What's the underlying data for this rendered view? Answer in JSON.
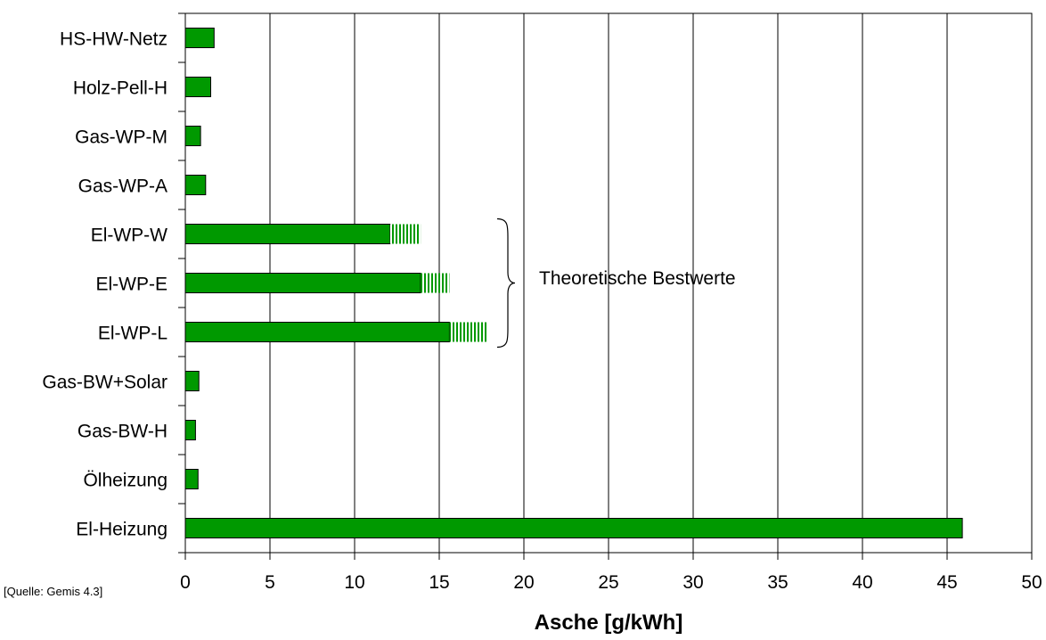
{
  "chart_data": {
    "type": "bar",
    "orientation": "horizontal",
    "categories": [
      "HS-HW-Netz",
      "Holz-Pell-H",
      "Gas-WP-M",
      "Gas-WP-A",
      "El-WP-W",
      "El-WP-E",
      "El-WP-L",
      "Gas-BW+Solar",
      "Gas-BW-H",
      "Ölheizung",
      "El-Heizung"
    ],
    "series": [
      {
        "values": [
          1.7,
          1.5,
          0.9,
          1.2,
          12.1,
          13.9,
          15.6,
          0.8,
          0.6,
          0.75,
          45.9
        ],
        "color": "#009900",
        "fill": "solid"
      },
      {
        "values": [
          0,
          0,
          0,
          0,
          1.8,
          1.7,
          2.2,
          0,
          0,
          0,
          0
        ],
        "color": "#009900",
        "fill": "hatched"
      }
    ],
    "xlabel": "Asche [g/kWh]",
    "ylabel": "",
    "xlim": [
      0,
      50
    ],
    "xticks": [
      "0",
      "5",
      "10",
      "15",
      "20",
      "25",
      "30",
      "35",
      "40",
      "45",
      "50"
    ],
    "grid": "vertical",
    "annotation": {
      "text": "Theoretische Bestwerte",
      "brace_categories": [
        "El-WP-W",
        "El-WP-E",
        "El-WP-L"
      ]
    }
  },
  "source_note": "[Quelle: Gemis 4.3]"
}
